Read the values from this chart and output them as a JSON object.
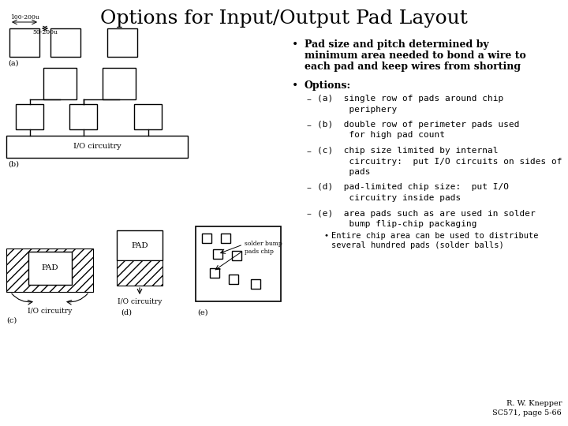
{
  "title": "Options for Input/Output Pad Layout",
  "title_fontsize": 18,
  "background_color": "#ffffff",
  "text_color": "#000000",
  "bullet1_line1": "Pad size and pitch determined by",
  "bullet1_line2": "minimum area needed to bond a wire to",
  "bullet1_line3": "each pad and keep wires from shorting",
  "bullet2": "Options:",
  "opt_a_1": "(a)  single row of pads around chip",
  "opt_a_2": "      periphery",
  "opt_b_1": "(b)  double row of perimeter pads used",
  "opt_b_2": "      for high pad count",
  "opt_c_1": "(c)  chip size limited by internal",
  "opt_c_2": "      circuitry:  put I/O circuits on sides of",
  "opt_c_3": "      pads",
  "opt_d_1": "(d)  pad-limited chip size:  put I/O",
  "opt_d_2": "      circuitry inside pads",
  "opt_e_1": "(e)  area pads such as are used in solder",
  "opt_e_2": "      bump flip-chip packaging",
  "sub_bullet_1": "Entire chip area can be used to distribute",
  "sub_bullet_2": "several hundred pads (solder balls)",
  "footer": "R. W. Knepper\nSC571, page 5-66",
  "font_family": "serif",
  "dim_label_a": "100-200u",
  "dim_label_b": "50-200u",
  "label_a": "(a)",
  "label_b": "(b)",
  "label_c": "(c)",
  "label_d": "(d)",
  "label_e": "(e)",
  "io_label": "I/O circuitry",
  "pad_label": "PAD",
  "solder_label": "solder bump\npads chip"
}
